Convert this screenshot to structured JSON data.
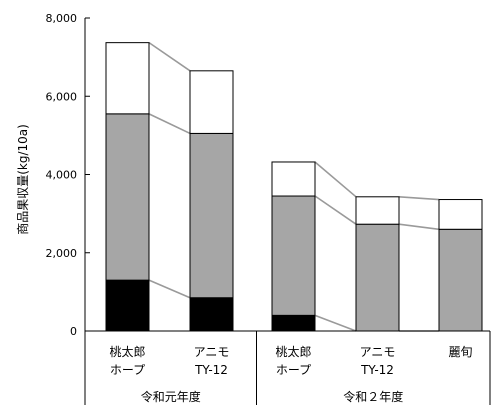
{
  "chart_data": {
    "type": "bar",
    "stacked": true,
    "ylabel": "商品果収量(kg/10a)",
    "ylim": [
      0,
      8000
    ],
    "yticks": [
      0,
      2000,
      4000,
      6000,
      8000
    ],
    "ytick_labels": [
      "0",
      "2,000",
      "4,000",
      "6,000",
      "8,000"
    ],
    "grid": false,
    "connectors": true,
    "groups": [
      {
        "label": "令和元年度",
        "categories": [
          0,
          1
        ]
      },
      {
        "label": "令和２年度",
        "categories": [
          2,
          3,
          4
        ]
      }
    ],
    "categories": [
      [
        "桃太郎",
        "ホープ"
      ],
      [
        "アニモ",
        "TY-12"
      ],
      [
        "桃太郎",
        "ホープ"
      ],
      [
        "アニモ",
        "TY-12"
      ],
      [
        "麗旬"
      ]
    ],
    "series": [
      {
        "color": "#000000",
        "values": [
          1300,
          850,
          400,
          0,
          0
        ]
      },
      {
        "color": "#a6a6a6",
        "values": [
          4250,
          4200,
          3050,
          2730,
          2600
        ]
      },
      {
        "color": "#ffffff",
        "values": [
          1820,
          1600,
          870,
          700,
          760
        ]
      }
    ]
  }
}
